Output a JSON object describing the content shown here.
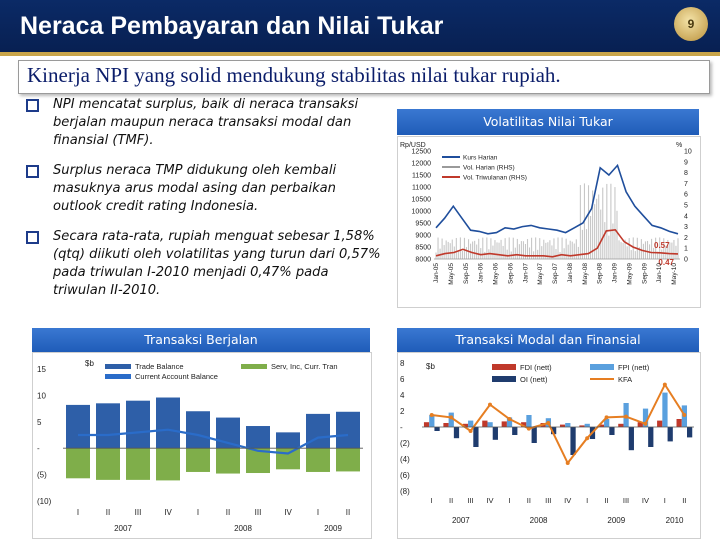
{
  "slide": {
    "title": "Neraca Pembayaran dan Nilai Tukar",
    "page_number": "9",
    "headline": "Kinerja NPI yang solid mendukung stabilitas nilai tukar rupiah.",
    "bullets": [
      "NPI mencatat surplus, baik di neraca transaksi berjalan maupun neraca transaksi modal dan finansial (TMF).",
      "Surplus neraca TMP didukung oleh kembali masuknya arus modal asing dan perbaikan outlook credit rating Indonesia.",
      "Secara rata-rata, rupiah menguat sebesar 1,58% (qtq) diikuti oleh volatilitas yang turun dari 0,57% pada triwulan I-2010 menjadi 0,47% pada triwulan II-2010."
    ]
  },
  "colors": {
    "header_bg": "#0b2a66",
    "accent": "#c9a54a",
    "chart_title_bg": "#2a6cc9"
  },
  "chart_data": [
    {
      "type": "line",
      "title": "Volatilitas Nilai Tukar",
      "ylabel": "Rp/USD",
      "y2label": "%",
      "legend": [
        "Kurs Harian",
        "Vol. Harian (RHS)",
        "Vol. Triwulanan (RHS)"
      ],
      "legend_position": "top-left",
      "yticks": [
        "12500",
        "12000",
        "11500",
        "11000",
        "10500",
        "10000",
        "9500",
        "9000",
        "8500",
        "8000"
      ],
      "y2ticks": [
        "10",
        "9",
        "8",
        "7",
        "6",
        "5",
        "4",
        "3",
        "2",
        "1",
        "0"
      ],
      "ylim": [
        8000,
        12500
      ],
      "y2lim": [
        0,
        10
      ],
      "xticks": [
        "Jan-05",
        "May-05",
        "Sep-05",
        "Jan-06",
        "May-06",
        "Sep-06",
        "Jan-07",
        "May-07",
        "Sep-07",
        "Jan-08",
        "May-08",
        "Sep-08",
        "Jan-09",
        "May-09",
        "Sep-09",
        "Jan-10",
        "May-10"
      ],
      "series": [
        {
          "name": "Kurs Harian",
          "color": "#1f4e9c",
          "values": [
            9300,
            9700,
            10200,
            9700,
            9200,
            9150,
            9050,
            9100,
            9300,
            9250,
            9350,
            9400,
            9300,
            9250,
            9200,
            9100,
            9300,
            9500,
            10100,
            11800,
            11500,
            11900,
            10800,
            10200,
            9800,
            9400,
            9300,
            9150,
            9050
          ]
        },
        {
          "name": "Vol. Harian (RHS)",
          "color": "#9a9a9a"
        },
        {
          "name": "Vol. Triwulanan (RHS)",
          "color": "#c0392b",
          "values": [
            0.3,
            0.5,
            0.6,
            0.9,
            0.6,
            0.4,
            0.5,
            0.4,
            0.3,
            0.4,
            0.3,
            0.3,
            0.3,
            0.2,
            0.4,
            0.3,
            0.4,
            0.5,
            1.0,
            2.6,
            2.7,
            1.6,
            1.1,
            0.8,
            0.6,
            0.57,
            0.5,
            0.47
          ]
        }
      ],
      "annotations": [
        "0.57",
        "0.47"
      ]
    },
    {
      "type": "bar",
      "title": "Transaksi Berjalan",
      "ylabel": "$b",
      "legend": [
        "Trade Balance",
        "Current Account Balance",
        "Serv, Inc, Curr. Tran"
      ],
      "legend_position": "top",
      "yticks": [
        "15",
        "10",
        "5",
        "-",
        "(5)",
        "(10)"
      ],
      "ylim": [
        -10,
        15
      ],
      "categories": [
        "I",
        "II",
        "III",
        "IV",
        "I",
        "II",
        "III",
        "IV",
        "I",
        "II"
      ],
      "groups": [
        "2007",
        "2008",
        "2009"
      ],
      "series": [
        {
          "name": "Trade Balance",
          "color": "#2e5fa8",
          "values": [
            8.2,
            8.5,
            9.0,
            9.6,
            7.0,
            5.8,
            4.2,
            3.0,
            6.5,
            6.9
          ]
        },
        {
          "name": "Current Account Balance",
          "color": "#2a6cc9",
          "values": [
            2.5,
            2.5,
            3.0,
            3.5,
            2.5,
            1.0,
            -0.5,
            -1.0,
            2.0,
            2.5
          ]
        },
        {
          "name": "Serv, Inc, Curr. Tran",
          "color": "#7fae4a",
          "values": [
            -5.7,
            -6.0,
            -6.0,
            -6.1,
            -4.5,
            -4.8,
            -4.7,
            -4.0,
            -4.5,
            -4.4
          ]
        }
      ]
    },
    {
      "type": "bar",
      "title": "Transaksi Modal dan Finansial",
      "ylabel": "$b",
      "legend": [
        "FDI (nett)",
        "FPI (nett)",
        "OI (nett)",
        "KFA"
      ],
      "legend_position": "top",
      "yticks": [
        "8",
        "6",
        "4",
        "2",
        "-",
        "(2)",
        "(4)",
        "(6)",
        "(8)"
      ],
      "ylim": [
        -8,
        8
      ],
      "categories": [
        "I",
        "II",
        "III",
        "IV",
        "I",
        "II",
        "III",
        "IV",
        "I",
        "II",
        "III",
        "IV",
        "I",
        "II"
      ],
      "groups": [
        "2007",
        "2008",
        "2009",
        "2010"
      ],
      "series": [
        {
          "name": "FDI (nett)",
          "color": "#c0392b",
          "values": [
            0.6,
            0.5,
            0.4,
            0.8,
            0.7,
            0.6,
            0.5,
            0.3,
            0.2,
            0.3,
            0.4,
            0.6,
            0.8,
            1.0
          ]
        },
        {
          "name": "FPI (nett)",
          "color": "#5aa0de",
          "values": [
            1.5,
            1.8,
            0.8,
            0.6,
            1.2,
            1.5,
            1.1,
            0.5,
            0.4,
            1.0,
            3.0,
            2.3,
            4.3,
            2.7
          ]
        },
        {
          "name": "OI (nett)",
          "color": "#1f3c6e",
          "values": [
            -0.5,
            -1.4,
            -2.5,
            -1.6,
            -1.0,
            -2.0,
            -0.9,
            -3.5,
            -1.5,
            -1.0,
            -2.9,
            -2.5,
            -1.8,
            -1.3
          ]
        },
        {
          "name": "KFA",
          "color": "#e67e22",
          "values": [
            1.5,
            1.2,
            -0.5,
            2.8,
            1.0,
            -0.2,
            0.5,
            -4.5,
            -1.4,
            1.2,
            1.3,
            0.4,
            5.3,
            1.5
          ]
        }
      ]
    }
  ]
}
